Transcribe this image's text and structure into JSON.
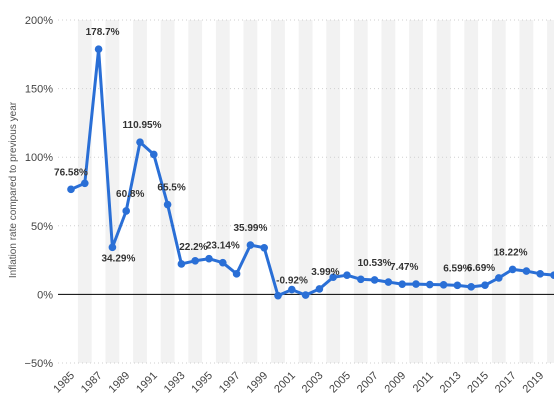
{
  "chart_data": {
    "type": "line",
    "ylabel": "Inflation rate compared to previous year",
    "xlabel": "",
    "title": "",
    "x": [
      1985,
      1986,
      1987,
      1988,
      1989,
      1990,
      1991,
      1992,
      1993,
      1994,
      1995,
      1996,
      1997,
      1998,
      1999,
      2000,
      2001,
      2002,
      2003,
      2004,
      2005,
      2006,
      2007,
      2008,
      2009,
      2010,
      2011,
      2012,
      2013,
      2014,
      2015,
      2016,
      2017,
      2018,
      2019,
      2020
    ],
    "values": [
      76.58,
      81.0,
      178.7,
      34.29,
      60.8,
      110.95,
      102.0,
      65.5,
      22.2,
      24.5,
      26.0,
      23.14,
      15.0,
      35.99,
      34.0,
      -0.92,
      3.5,
      -0.5,
      3.99,
      12.5,
      14.0,
      11.0,
      10.53,
      9.0,
      7.47,
      7.5,
      7.2,
      7.0,
      6.59,
      5.5,
      6.69,
      12.0,
      18.22,
      17.0,
      15.0,
      14.0
    ],
    "ylim": [
      -50,
      200
    ],
    "yticks": [
      -50,
      0,
      50,
      100,
      150,
      200
    ],
    "ytick_labels": [
      "−50%",
      "0%",
      "50%",
      "100%",
      "150%",
      "200%"
    ],
    "xtick_labels": [
      "1985",
      "1987",
      "1989",
      "1991",
      "1993",
      "1995",
      "1997",
      "1999",
      "2001",
      "2003",
      "2005",
      "2007",
      "2009",
      "2011",
      "2013",
      "2015",
      "2017",
      "2019"
    ],
    "data_labels": [
      {
        "year": 1985,
        "text": "76.58%"
      },
      {
        "year": 1987,
        "text": "178.7%"
      },
      {
        "year": 1988,
        "text": "34.29%"
      },
      {
        "year": 1989,
        "text": "60.8%"
      },
      {
        "year": 1990,
        "text": "110.95%"
      },
      {
        "year": 1992,
        "text": "65.5%"
      },
      {
        "year": 1993,
        "text": "22.2%"
      },
      {
        "year": 1996,
        "text": "23.14%"
      },
      {
        "year": 1998,
        "text": "35.99%"
      },
      {
        "year": 2000,
        "text": "-0.92%"
      },
      {
        "year": 2003,
        "text": "3.99%"
      },
      {
        "year": 2007,
        "text": "10.53%"
      },
      {
        "year": 2009,
        "text": "7.47%"
      },
      {
        "year": 2013,
        "text": "6.59%"
      },
      {
        "year": 2015,
        "text": "6.69%"
      },
      {
        "year": 2017,
        "text": "18.22%"
      }
    ],
    "grid": "horizontal dotted, alternating vertical bands",
    "line_color": "#2a6fd6",
    "band_color": "#f2f2f2",
    "zero_line_color": "#000000"
  }
}
